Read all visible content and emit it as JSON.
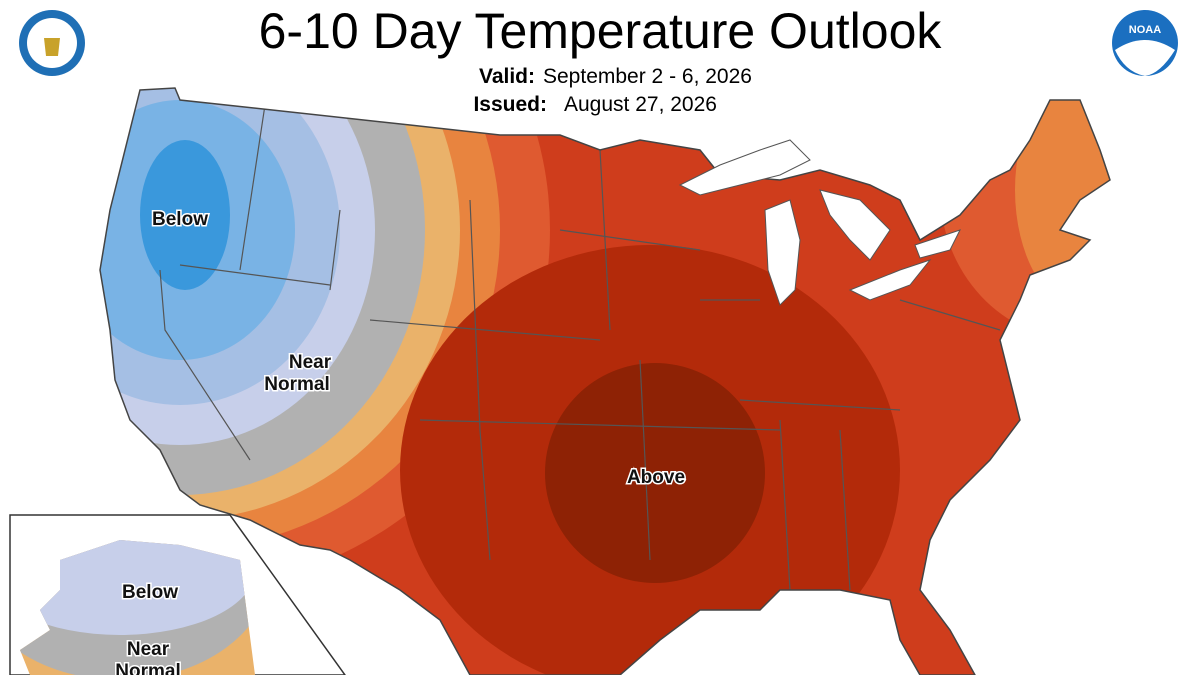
{
  "header": {
    "title": "6-10 Day Temperature Outlook",
    "valid": {
      "label": "Valid:",
      "value": "September 2 - 6, 2026"
    },
    "issued": {
      "label": "Issued:",
      "value": "August 27, 2026"
    },
    "logo_text": "NOAA"
  },
  "map": {
    "labels": {
      "below": "Below",
      "near_normal": [
        "Near",
        "Normal"
      ],
      "above": "Above"
    }
  },
  "alaska": {
    "labels": {
      "below": "Below",
      "near_normal": [
        "Near",
        "Normal"
      ]
    }
  }
}
